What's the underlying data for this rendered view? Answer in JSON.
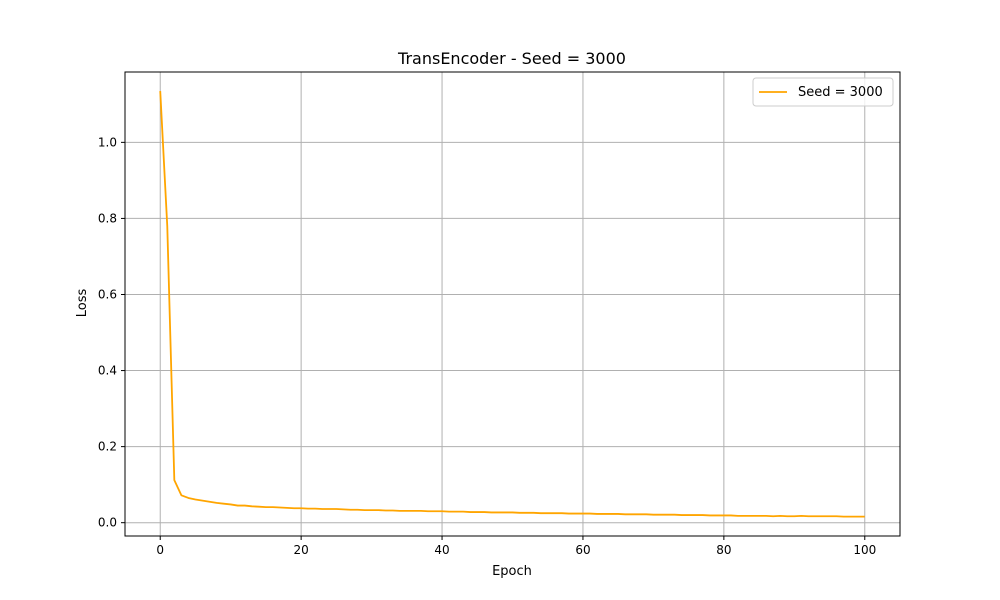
{
  "chart_data": {
    "type": "line",
    "title": "TransEncoder - Seed = 3000",
    "xlabel": "Epoch",
    "ylabel": "Loss",
    "xlim": [
      -5,
      105
    ],
    "ylim": [
      -0.035,
      1.185
    ],
    "xticks": [
      0,
      20,
      40,
      60,
      80,
      100
    ],
    "xtick_labels": [
      "0",
      "20",
      "40",
      "60",
      "80",
      "100"
    ],
    "yticks": [
      0.0,
      0.2,
      0.4,
      0.6,
      0.8,
      1.0
    ],
    "ytick_labels": [
      "0.0",
      "0.2",
      "0.4",
      "0.6",
      "0.8",
      "1.0"
    ],
    "grid": true,
    "legend_position": "top-right",
    "series": [
      {
        "name": "Seed = 3000",
        "color": "#ffa500",
        "x": [
          0,
          1,
          2,
          3,
          4,
          5,
          6,
          7,
          8,
          9,
          10,
          11,
          12,
          13,
          14,
          15,
          16,
          17,
          18,
          19,
          20,
          21,
          22,
          23,
          24,
          25,
          26,
          27,
          28,
          29,
          30,
          31,
          32,
          33,
          34,
          35,
          36,
          37,
          38,
          39,
          40,
          41,
          42,
          43,
          44,
          45,
          46,
          47,
          48,
          49,
          50,
          51,
          52,
          53,
          54,
          55,
          56,
          57,
          58,
          59,
          60,
          61,
          62,
          63,
          64,
          65,
          66,
          67,
          68,
          69,
          70,
          71,
          72,
          73,
          74,
          75,
          76,
          77,
          78,
          79,
          80,
          81,
          82,
          83,
          84,
          85,
          86,
          87,
          88,
          89,
          90,
          91,
          92,
          93,
          94,
          95,
          96,
          97,
          98,
          99,
          100
        ],
        "y": [
          1.135,
          0.78,
          0.112,
          0.072,
          0.065,
          0.061,
          0.058,
          0.055,
          0.052,
          0.05,
          0.048,
          0.045,
          0.045,
          0.043,
          0.042,
          0.041,
          0.041,
          0.04,
          0.039,
          0.038,
          0.038,
          0.037,
          0.037,
          0.036,
          0.036,
          0.036,
          0.035,
          0.034,
          0.034,
          0.033,
          0.033,
          0.033,
          0.032,
          0.032,
          0.031,
          0.031,
          0.031,
          0.031,
          0.03,
          0.03,
          0.03,
          0.029,
          0.029,
          0.029,
          0.028,
          0.028,
          0.028,
          0.027,
          0.027,
          0.027,
          0.027,
          0.026,
          0.026,
          0.026,
          0.025,
          0.025,
          0.025,
          0.025,
          0.024,
          0.024,
          0.024,
          0.024,
          0.023,
          0.023,
          0.023,
          0.023,
          0.022,
          0.022,
          0.022,
          0.022,
          0.021,
          0.021,
          0.021,
          0.021,
          0.02,
          0.02,
          0.02,
          0.02,
          0.019,
          0.019,
          0.019,
          0.019,
          0.018,
          0.018,
          0.018,
          0.018,
          0.018,
          0.017,
          0.018,
          0.017,
          0.017,
          0.018,
          0.017,
          0.017,
          0.017,
          0.017,
          0.017,
          0.016,
          0.016,
          0.016,
          0.016
        ]
      }
    ]
  }
}
